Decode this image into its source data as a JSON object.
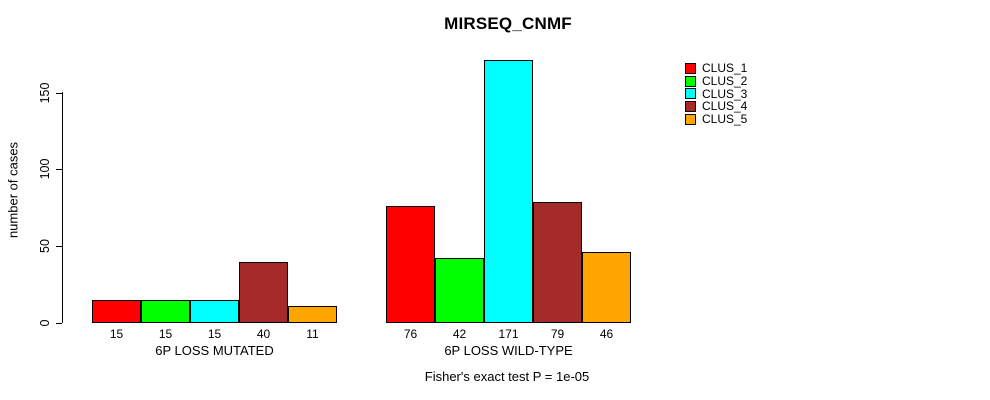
{
  "chart": {
    "title": "MIRSEQ_CNMF",
    "ylabel": "number of cases",
    "annotation": "Fisher's exact test P = 1e-05"
  },
  "chart_data": {
    "type": "bar",
    "title": "MIRSEQ_CNMF",
    "xlabel": "",
    "ylabel": "number of cases",
    "ylim": [
      0,
      175
    ],
    "yticks": [
      0,
      50,
      100,
      150
    ],
    "grid": false,
    "legend_position": "top-right",
    "categories": [
      "6P LOSS MUTATED",
      "6P LOSS WILD-TYPE"
    ],
    "series": [
      {
        "name": "CLUS_1",
        "color": "#FF0000",
        "values": [
          15,
          76
        ]
      },
      {
        "name": "CLUS_2",
        "color": "#00FF00",
        "values": [
          15,
          42
        ]
      },
      {
        "name": "CLUS_3",
        "color": "#00FFFF",
        "values": [
          15,
          171
        ]
      },
      {
        "name": "CLUS_4",
        "color": "#A52A2A",
        "values": [
          40,
          79
        ]
      },
      {
        "name": "CLUS_5",
        "color": "#FFA500",
        "values": [
          11,
          46
        ]
      }
    ],
    "bar_value_labels": [
      [
        15,
        15,
        15,
        40,
        11
      ],
      [
        76,
        42,
        171,
        79,
        46
      ]
    ],
    "annotation": "Fisher's exact test P = 1e-05"
  }
}
